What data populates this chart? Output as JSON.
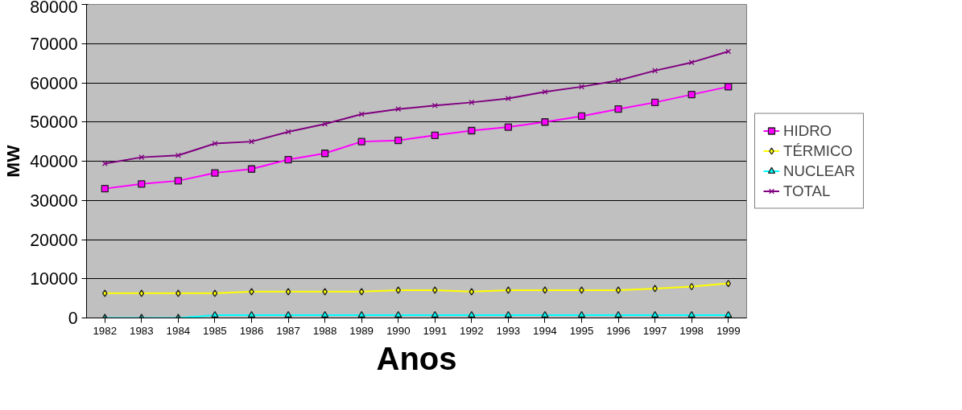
{
  "chart_data": {
    "type": "line",
    "xlabel": "Anos",
    "ylabel": "MW",
    "categories": [
      "1982",
      "1983",
      "1984",
      "1985",
      "1986",
      "1987",
      "1988",
      "1989",
      "1990",
      "1991",
      "1992",
      "1993",
      "1994",
      "1995",
      "1996",
      "1997",
      "1998",
      "1999"
    ],
    "ylim": [
      0,
      80000
    ],
    "yticks": [
      0,
      10000,
      20000,
      30000,
      40000,
      50000,
      60000,
      70000,
      80000
    ],
    "grid": "y",
    "legend": "right",
    "series": [
      {
        "name": "HIDRO",
        "color": "#ff00ff",
        "marker": "square",
        "values": [
          33000,
          34200,
          35000,
          37000,
          38000,
          40400,
          42000,
          45000,
          45300,
          46600,
          47800,
          48700,
          50000,
          51500,
          53300,
          55000,
          57000,
          59000
        ]
      },
      {
        "name": "TÉRMICO",
        "color": "#ffff00",
        "marker": "diamond",
        "values": [
          6300,
          6300,
          6300,
          6300,
          6700,
          6700,
          6700,
          6700,
          7100,
          7100,
          6700,
          7100,
          7100,
          7100,
          7100,
          7500,
          8000,
          8800
        ]
      },
      {
        "name": "NUCLEAR",
        "color": "#00ffff",
        "marker": "triangle",
        "values": [
          0,
          0,
          0,
          700,
          700,
          700,
          700,
          700,
          700,
          700,
          700,
          700,
          700,
          700,
          700,
          700,
          700,
          700
        ]
      },
      {
        "name": "TOTAL",
        "color": "#800080",
        "marker": "cross",
        "values": [
          39400,
          41000,
          41500,
          44500,
          45000,
          47500,
          49500,
          52000,
          53300,
          54200,
          55000,
          56000,
          57700,
          59000,
          60600,
          63100,
          65200,
          68000
        ]
      }
    ]
  }
}
